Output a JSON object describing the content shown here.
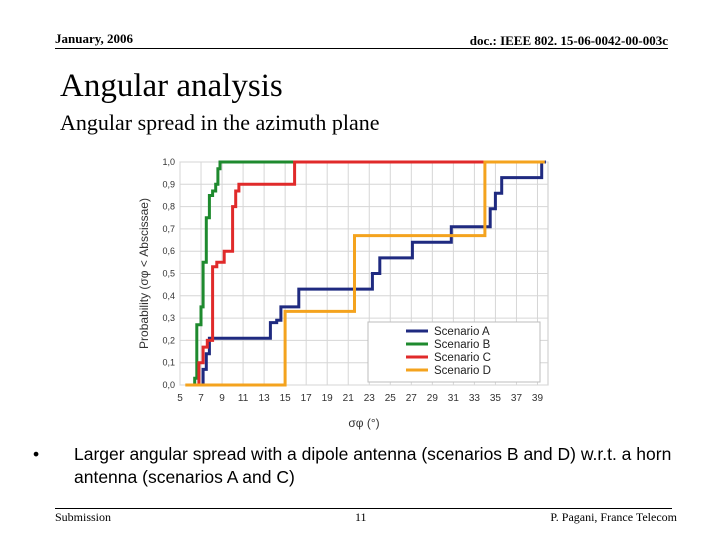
{
  "header": {
    "date": "January, 2006",
    "doc_id": "doc.: IEEE 802. 15-06-0042-00-003c"
  },
  "slide": {
    "title": "Angular analysis",
    "subtitle": "Angular spread in the azimuth plane",
    "bullet_symbol": "•",
    "bullet": "Larger angular spread with a dipole antenna (scenarios B and D) w.r.t. a horn antenna (scenarios A and C)"
  },
  "footer": {
    "left": "Submission",
    "page": "11",
    "right": "P. Pagani, France Telecom"
  },
  "chart_data": {
    "type": "line",
    "step": true,
    "title": "",
    "xlabel": "σφ (°)",
    "ylabel": "Probability (σφ < Abscissae)",
    "xlim": [
      5,
      40
    ],
    "ylim": [
      0,
      1
    ],
    "x_ticks": [
      "5",
      "7",
      "9",
      "11",
      "13",
      "15",
      "17",
      "19",
      "21",
      "23",
      "25",
      "27",
      "29",
      "31",
      "33",
      "35",
      "37",
      "39"
    ],
    "x_tick_values": [
      5,
      7,
      9,
      11,
      13,
      15,
      17,
      19,
      21,
      23,
      25,
      27,
      29,
      31,
      33,
      35,
      37,
      39
    ],
    "y_ticks": [
      "0,0",
      "0,1",
      "0,2",
      "0,3",
      "0,4",
      "0,5",
      "0,6",
      "0,7",
      "0,8",
      "0,9",
      "1,0"
    ],
    "y_tick_values": [
      0,
      0.1,
      0.2,
      0.3,
      0.4,
      0.5,
      0.6,
      0.7,
      0.8,
      0.9,
      1.0
    ],
    "grid": true,
    "legend_position": "bottom-right",
    "series": [
      {
        "name": "Scenario A",
        "color": "#1f2a80",
        "points": [
          [
            7.2,
            0
          ],
          [
            7.2,
            0.07
          ],
          [
            7.5,
            0.07
          ],
          [
            7.5,
            0.14
          ],
          [
            7.8,
            0.14
          ],
          [
            7.8,
            0.21
          ],
          [
            13.6,
            0.21
          ],
          [
            13.6,
            0.28
          ],
          [
            14.2,
            0.28
          ],
          [
            14.2,
            0.29
          ],
          [
            14.6,
            0.29
          ],
          [
            14.6,
            0.35
          ],
          [
            16.3,
            0.35
          ],
          [
            16.3,
            0.43
          ],
          [
            23.3,
            0.43
          ],
          [
            23.3,
            0.5
          ],
          [
            24.0,
            0.5
          ],
          [
            24.0,
            0.57
          ],
          [
            27.1,
            0.57
          ],
          [
            27.1,
            0.64
          ],
          [
            30.8,
            0.64
          ],
          [
            30.8,
            0.71
          ],
          [
            34.5,
            0.71
          ],
          [
            34.5,
            0.79
          ],
          [
            35.0,
            0.79
          ],
          [
            35.0,
            0.86
          ],
          [
            35.6,
            0.86
          ],
          [
            35.6,
            0.93
          ],
          [
            39.4,
            0.93
          ],
          [
            39.4,
            1.0
          ],
          [
            39.8,
            1.0
          ]
        ]
      },
      {
        "name": "Scenario B",
        "color": "#1e8a2e",
        "points": [
          [
            6.4,
            0
          ],
          [
            6.4,
            0.03
          ],
          [
            6.6,
            0.03
          ],
          [
            6.6,
            0.27
          ],
          [
            7.0,
            0.27
          ],
          [
            7.0,
            0.35
          ],
          [
            7.2,
            0.35
          ],
          [
            7.2,
            0.55
          ],
          [
            7.5,
            0.55
          ],
          [
            7.5,
            0.75
          ],
          [
            7.8,
            0.75
          ],
          [
            7.8,
            0.85
          ],
          [
            8.1,
            0.85
          ],
          [
            8.1,
            0.87
          ],
          [
            8.4,
            0.87
          ],
          [
            8.4,
            0.9
          ],
          [
            8.6,
            0.9
          ],
          [
            8.6,
            0.97
          ],
          [
            8.8,
            0.97
          ],
          [
            8.8,
            1.0
          ],
          [
            34.0,
            1.0
          ]
        ]
      },
      {
        "name": "Scenario C",
        "color": "#e02a2a",
        "points": [
          [
            6.8,
            0
          ],
          [
            6.8,
            0.1
          ],
          [
            7.2,
            0.1
          ],
          [
            7.2,
            0.17
          ],
          [
            7.6,
            0.17
          ],
          [
            7.6,
            0.2
          ],
          [
            8.1,
            0.2
          ],
          [
            8.1,
            0.53
          ],
          [
            8.5,
            0.53
          ],
          [
            8.5,
            0.55
          ],
          [
            9.2,
            0.55
          ],
          [
            9.2,
            0.6
          ],
          [
            10.0,
            0.6
          ],
          [
            10.0,
            0.8
          ],
          [
            10.3,
            0.8
          ],
          [
            10.3,
            0.87
          ],
          [
            10.6,
            0.87
          ],
          [
            10.6,
            0.9
          ],
          [
            15.9,
            0.9
          ],
          [
            15.9,
            1.0
          ],
          [
            34.6,
            1.0
          ]
        ]
      },
      {
        "name": "Scenario D",
        "color": "#f4a31e",
        "points": [
          [
            5.5,
            0
          ],
          [
            15.0,
            0
          ],
          [
            15.0,
            0.33
          ],
          [
            21.6,
            0.33
          ],
          [
            21.6,
            0.67
          ],
          [
            34.0,
            0.67
          ],
          [
            34.0,
            1.0
          ],
          [
            39.7,
            1.0
          ]
        ]
      }
    ]
  }
}
